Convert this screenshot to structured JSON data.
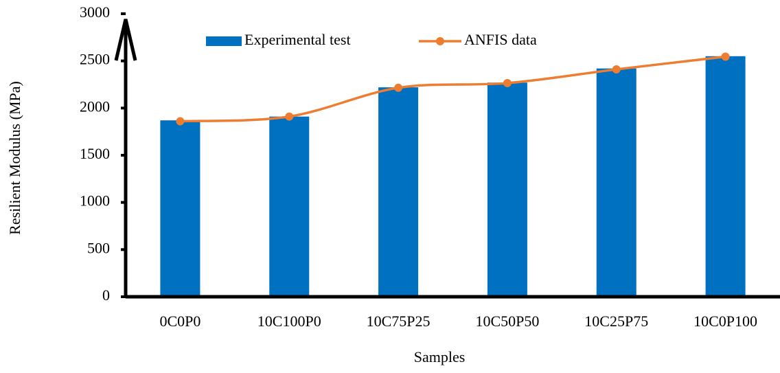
{
  "chart_data": {
    "type": "bar-line",
    "xlabel": "Samples",
    "ylabel": "Resilient Modulus (MPa)",
    "categories": [
      "0C0P0",
      "10C100P0",
      "10C75P25",
      "10C50P50",
      "10C25P75",
      "10C0P100"
    ],
    "series": [
      {
        "name": "Experimental test",
        "type": "bar",
        "color": "#0070c0",
        "values": [
          1870,
          1910,
          2220,
          2270,
          2420,
          2550
        ]
      },
      {
        "name": "ANFIS data",
        "type": "line",
        "color": "#ed7d31",
        "values": [
          1860,
          1910,
          2215,
          2265,
          2410,
          2545
        ]
      }
    ],
    "ylim": [
      0,
      3000
    ],
    "yticks": [
      0,
      500,
      1000,
      1500,
      2000,
      2500,
      3000
    ],
    "grid": false,
    "legend": "top"
  }
}
